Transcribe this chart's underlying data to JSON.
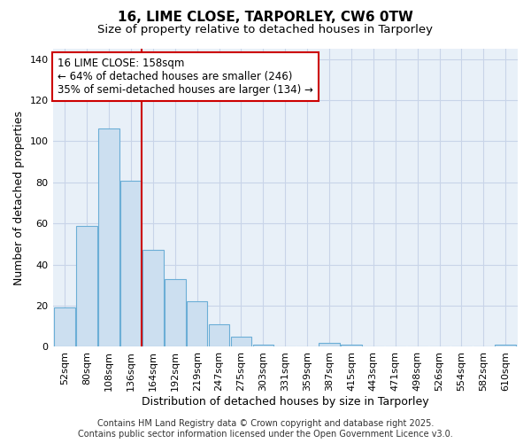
{
  "title": "16, LIME CLOSE, TARPORLEY, CW6 0TW",
  "subtitle": "Size of property relative to detached houses in Tarporley",
  "xlabel": "Distribution of detached houses by size in Tarporley",
  "ylabel": "Number of detached properties",
  "categories": [
    "52sqm",
    "80sqm",
    "108sqm",
    "136sqm",
    "164sqm",
    "192sqm",
    "219sqm",
    "247sqm",
    "275sqm",
    "303sqm",
    "331sqm",
    "359sqm",
    "387sqm",
    "415sqm",
    "443sqm",
    "471sqm",
    "498sqm",
    "526sqm",
    "554sqm",
    "582sqm",
    "610sqm"
  ],
  "bar_values": [
    19,
    59,
    106,
    81,
    47,
    33,
    22,
    11,
    5,
    1,
    0,
    0,
    2,
    1,
    0,
    0,
    0,
    0,
    0,
    0,
    1
  ],
  "bar_color": "#ccdff0",
  "bar_edge_color": "#6baed6",
  "bar_edge_width": 0.8,
  "grid_color": "#c8d4e8",
  "background_color": "#ffffff",
  "plot_bg_color": "#e8f0f8",
  "red_line_index": 4,
  "red_line_color": "#cc0000",
  "annotation_text": "16 LIME CLOSE: 158sqm\n← 64% of detached houses are smaller (246)\n35% of semi-detached houses are larger (134) →",
  "annotation_box_color": "#ffffff",
  "annotation_box_edge_color": "#cc0000",
  "ylim": [
    0,
    145
  ],
  "yticks": [
    0,
    20,
    40,
    60,
    80,
    100,
    120,
    140
  ],
  "footer_text": "Contains HM Land Registry data © Crown copyright and database right 2025.\nContains public sector information licensed under the Open Government Licence v3.0.",
  "title_fontsize": 11,
  "subtitle_fontsize": 9.5,
  "axis_label_fontsize": 9,
  "tick_fontsize": 8,
  "annotation_fontsize": 8.5,
  "footer_fontsize": 7
}
